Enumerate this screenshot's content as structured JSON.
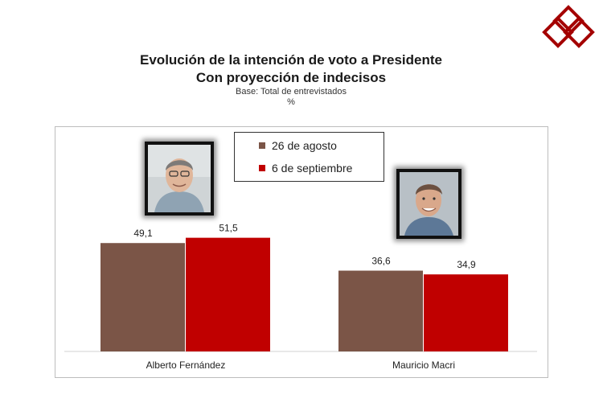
{
  "header": {
    "title": "Evolución de la intención de voto a Presidente",
    "subtitle": "Con proyección de indecisos",
    "base": "Base: Total de entrevistados",
    "unit": "%"
  },
  "colors": {
    "series_1": "#7b5547",
    "series_2": "#c00000",
    "logo": "#a40000"
  },
  "chart_data": {
    "type": "bar",
    "categories": [
      "Alberto Fernández",
      "Mauricio Macri"
    ],
    "series": [
      {
        "name": "26 de agosto",
        "values": [
          49.1,
          36.6
        ],
        "labels": [
          "49,1",
          "36,6"
        ]
      },
      {
        "name": "6 de septiembre",
        "values": [
          51.5,
          34.9
        ],
        "labels": [
          "51,5",
          "34,9"
        ]
      }
    ],
    "ylim": [
      0,
      60
    ],
    "grid": false,
    "legend": "top-center"
  }
}
